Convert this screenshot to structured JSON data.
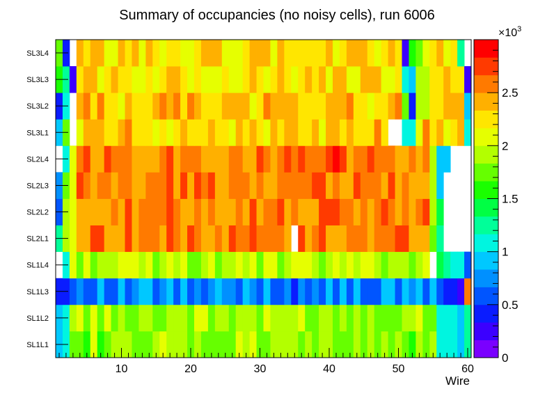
{
  "chart_data": {
    "type": "heatmap",
    "title": "Summary of occupancies (no noisy cells), run 6006",
    "xlabel": "Wire",
    "ylabel": "",
    "x_range": [
      0.5,
      60.5
    ],
    "x_ticks": [
      "10",
      "20",
      "30",
      "40",
      "50",
      "60"
    ],
    "rows": [
      "SL1L1",
      "SL1L2",
      "SL1L3",
      "SL1L4",
      "SL2L1",
      "SL2L2",
      "SL2L3",
      "SL2L4",
      "SL3L1",
      "SL3L2",
      "SL3L3",
      "SL3L4"
    ],
    "colorbar": {
      "min": 0,
      "max": 3000,
      "exponent_label": "×10",
      "exponent_power": "3",
      "tick_labels": [
        "0",
        "0.5",
        "1",
        "1.5",
        "2",
        "2.5"
      ],
      "tick_values": [
        0,
        500,
        1000,
        1500,
        2000,
        2500
      ]
    },
    "row_profiles": {
      "SL1L1": {
        "base": 1820,
        "edge_wires": {
          "1": 950,
          "2": 1150,
          "56": 1150,
          "57": 1100,
          "58": 1150,
          "59": 900,
          "60": 1300
        }
      },
      "SL1L2": {
        "base": 1880,
        "edge_wires": {
          "1": 950,
          "2": 1150,
          "56": 1150,
          "57": 1150,
          "58": 1100,
          "59": 900,
          "60": 1250
        }
      },
      "SL1L3": {
        "base": 700,
        "edge_wires": {
          "1": 350,
          "2": 400,
          "31": 850,
          "44": 850,
          "57": 450,
          "58": 450,
          "59": 300,
          "60": 2550
        }
      },
      "SL1L4": {
        "base": 1950,
        "edge_wires": {
          "1": 0,
          "2": 1050,
          "55": 0,
          "56": 1350,
          "57": 1200,
          "58": 1150,
          "59": 1050,
          "60": 650
        }
      },
      "SL2L1": {
        "base": 2550,
        "edge_wires": {
          "1": 1300,
          "2": 1900,
          "3": 2100,
          "35": 0,
          "55": 1700,
          "56": 1200,
          "57": 0,
          "58": 0,
          "59": 0,
          "60": 0
        }
      },
      "SL2L2": {
        "base": 2550,
        "edge_wires": {
          "1": 650,
          "2": 1900,
          "3": 2050,
          "55": 1850,
          "56": 1350,
          "57": 0,
          "58": 0,
          "59": 0,
          "60": 0
        }
      },
      "SL2L3": {
        "base": 2550,
        "edge_wires": {
          "1": 700,
          "2": 1700,
          "3": 2100,
          "55": 1850,
          "56": 900,
          "57": 0,
          "58": 0,
          "59": 0,
          "60": 0
        }
      },
      "SL2L4": {
        "base": 2600,
        "edge_wires": {
          "1": 0,
          "2": 1150,
          "3": 2100,
          "41": 2950,
          "55": 1850,
          "56": 850,
          "57": 850,
          "58": 0,
          "59": 0,
          "60": 0
        }
      },
      "SL3L1": {
        "base": 2300,
        "edge_wires": {
          "1": 950,
          "2": 1800,
          "3": 0,
          "49": 0,
          "50": 0,
          "51": 1100,
          "52": 1100,
          "60": 1000
        }
      },
      "SL3L2": {
        "base": 2350,
        "edge_wires": {
          "1": 400,
          "2": 1050,
          "3": 0,
          "51": 1750,
          "52": 400,
          "53": 1900,
          "54": 1900,
          "60": 900
        }
      },
      "SL3L3": {
        "base": 2250,
        "edge_wires": {
          "1": 1550,
          "2": 1200,
          "3": 200,
          "51": 1050,
          "52": 900,
          "53": 1950,
          "54": 1950,
          "60": 200
        }
      },
      "SL3L4": {
        "base": 2250,
        "edge_wires": {
          "1": 1750,
          "2": 350,
          "3": 0,
          "51": 300,
          "52": 1500,
          "53": 1800,
          "59": 1200,
          "60": 0
        }
      }
    }
  }
}
